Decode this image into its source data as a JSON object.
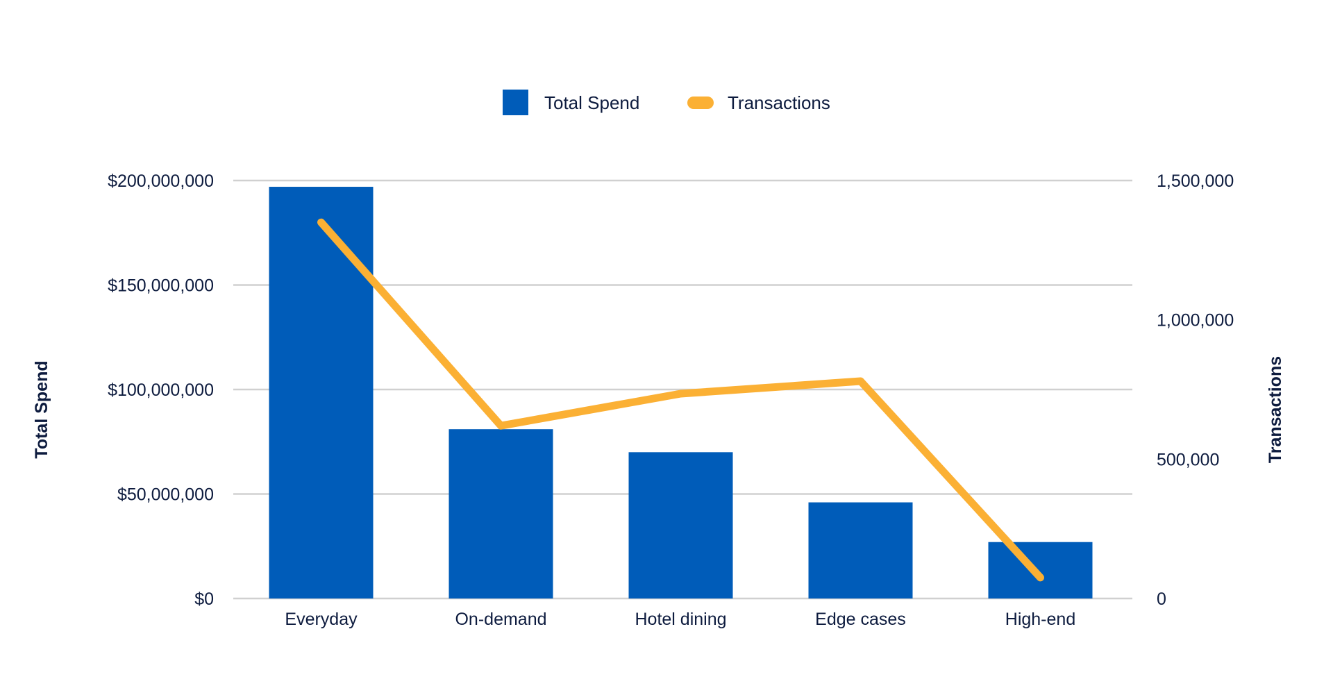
{
  "chart_data": {
    "type": "bar",
    "title": "",
    "categories": [
      "Everyday",
      "On-demand",
      "Hotel dining",
      "Edge cases",
      "High-end"
    ],
    "series": [
      {
        "name": "Total Spend",
        "type": "bar",
        "axis": "left",
        "color": "#005cb9",
        "values": [
          197000000,
          81000000,
          70000000,
          46000000,
          27000000
        ]
      },
      {
        "name": "Transactions",
        "type": "line",
        "axis": "right",
        "color": "#fbb034",
        "values": [
          1350000,
          620000,
          735000,
          780000,
          75000
        ]
      }
    ],
    "ylabel": "Total Spend",
    "y2label": "Transactions",
    "ylim": [
      0,
      200000000
    ],
    "y2lim": [
      0,
      1500000
    ],
    "yticks": [
      "$0",
      "$50,000,000",
      "$100,000,000",
      "$150,000,000",
      "$200,000,000"
    ],
    "y2ticks": [
      "0",
      "500,000",
      "1,000,000",
      "1,500,000"
    ],
    "grid": true,
    "legend_position": "top-center",
    "gridline_color": "#d0d0d0"
  }
}
